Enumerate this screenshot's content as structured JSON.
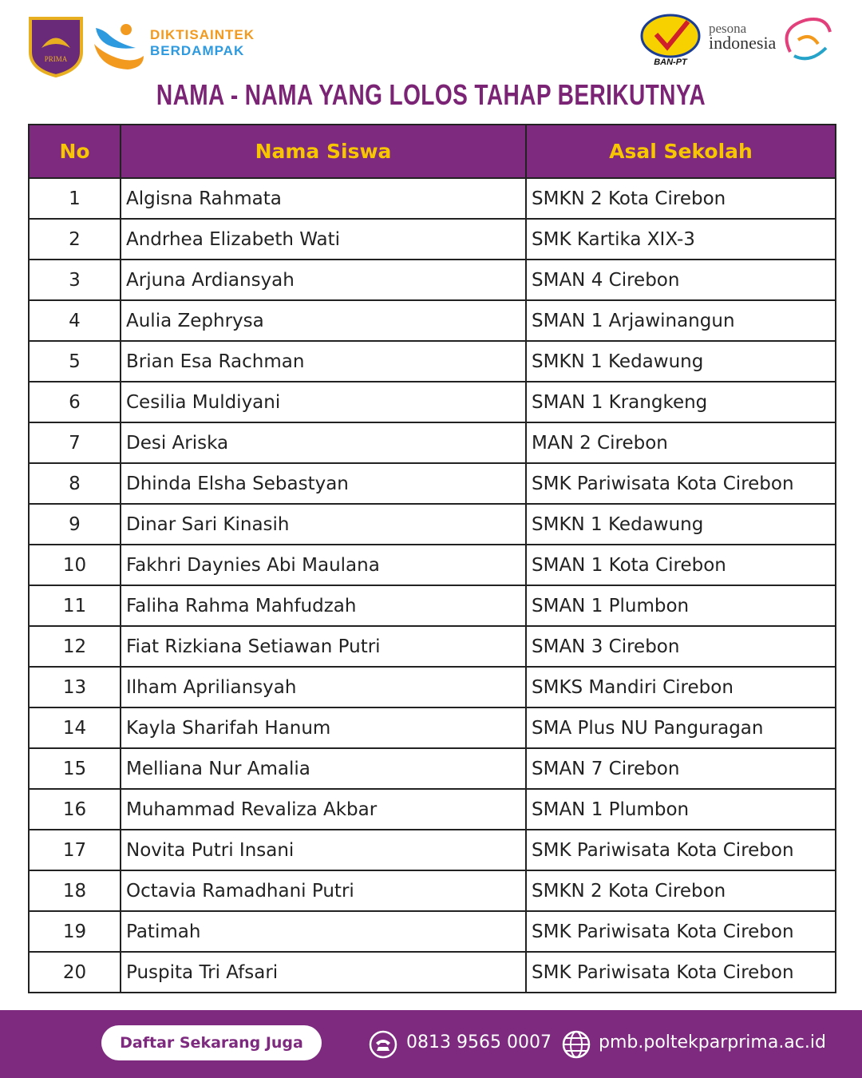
{
  "header": {
    "logo_left": "PRIMA",
    "brand_line1": "DIKTISAINTEK",
    "brand_line2": "BERDAMPAK",
    "ban_pt": "BAN-PT",
    "pesona": "pesona",
    "indonesia": "indonesia"
  },
  "title": "NAMA - NAMA YANG LOLOS TAHAP BERIKUTNYA",
  "table": {
    "columns": [
      "No",
      "Nama Siswa",
      "Asal Sekolah"
    ],
    "rows": [
      [
        1,
        "Algisna Rahmata",
        "SMKN 2 Kota Cirebon"
      ],
      [
        2,
        "Andrhea Elizabeth Wati",
        "SMK Kartika XIX-3"
      ],
      [
        3,
        "Arjuna Ardiansyah",
        "SMAN 4 Cirebon"
      ],
      [
        4,
        "Aulia Zephrysa",
        "SMAN 1 Arjawinangun"
      ],
      [
        5,
        "Brian Esa Rachman",
        "SMKN 1 Kedawung"
      ],
      [
        6,
        "Cesilia Muldiyani",
        "SMAN 1 Krangkeng"
      ],
      [
        7,
        "Desi Ariska",
        "MAN 2 Cirebon"
      ],
      [
        8,
        "Dhinda Elsha Sebastyan",
        "SMK Pariwisata Kota Cirebon"
      ],
      [
        9,
        "Dinar Sari Kinasih",
        "SMKN 1 Kedawung"
      ],
      [
        10,
        "Fakhri Daynies Abi Maulana",
        "SMAN 1 Kota Cirebon"
      ],
      [
        11,
        "Faliha Rahma Mahfudzah",
        "SMAN 1 Plumbon"
      ],
      [
        12,
        "Fiat Rizkiana Setiawan Putri",
        "SMAN 3 Cirebon"
      ],
      [
        13,
        "Ilham Apriliansyah",
        "SMKS Mandiri Cirebon"
      ],
      [
        14,
        "Kayla Sharifah Hanum",
        "SMA Plus NU Panguragan"
      ],
      [
        15,
        "Melliana Nur Amalia",
        "SMAN 7 Cirebon"
      ],
      [
        16,
        "Muhammad Revaliza Akbar",
        "SMAN 1 Plumbon"
      ],
      [
        17,
        "Novita Putri Insani",
        "SMK Pariwisata Kota Cirebon"
      ],
      [
        18,
        "Octavia Ramadhani Putri",
        "SMKN 2 Kota Cirebon"
      ],
      [
        19,
        "Patimah",
        "SMK Pariwisata Kota Cirebon"
      ],
      [
        20,
        "Puspita Tri Afsari",
        "SMK Pariwisata Kota Cirebon"
      ]
    ]
  },
  "footer": {
    "button": "Daftar Sekarang Juga",
    "phone": "0813 9565 0007",
    "website": "pmb.poltekparprima.ac.id"
  }
}
